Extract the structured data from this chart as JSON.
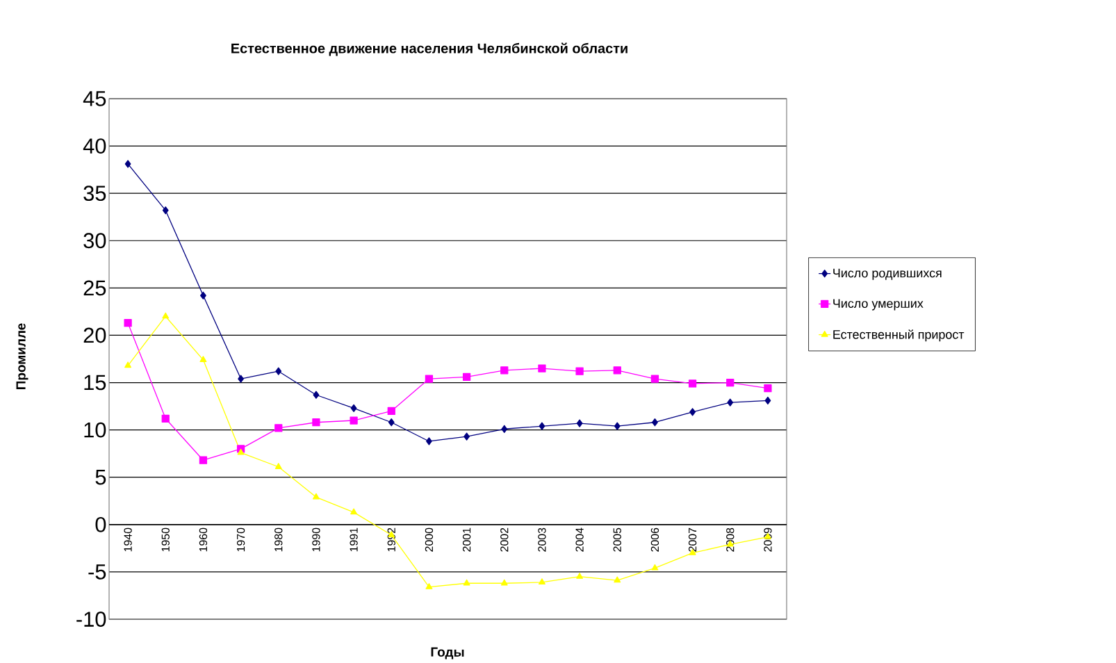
{
  "chart_data": {
    "type": "line",
    "title": "Естественное движение населения Челябинской области",
    "xlabel": "Годы",
    "ylabel": "Промилле",
    "categories": [
      "1940",
      "1950",
      "1960",
      "1970",
      "1980",
      "1990",
      "1991",
      "1992",
      "2000",
      "2001",
      "2002",
      "2003",
      "2004",
      "2005",
      "2006",
      "2007",
      "2008",
      "2009"
    ],
    "series": [
      {
        "name": "Число  родившихся",
        "color": "#000080",
        "marker": "diamond",
        "values": [
          38.1,
          33.2,
          24.2,
          15.4,
          16.2,
          13.7,
          12.3,
          10.8,
          8.8,
          9.3,
          10.1,
          10.4,
          10.7,
          10.4,
          10.8,
          11.9,
          12.9,
          13.1
        ]
      },
      {
        "name": "Число  умерших",
        "color": "#ff00ff",
        "marker": "square",
        "values": [
          21.3,
          11.2,
          6.8,
          8.0,
          10.2,
          10.8,
          11.0,
          12.0,
          15.4,
          15.6,
          16.3,
          16.5,
          16.2,
          16.3,
          15.4,
          14.9,
          15.0,
          14.4
        ]
      },
      {
        "name": "Естественный прирост",
        "color": "#ffff00",
        "marker": "triangle",
        "values": [
          16.8,
          22.0,
          17.4,
          7.6,
          6.1,
          2.9,
          1.3,
          -1.1,
          -6.6,
          -6.2,
          -6.2,
          -6.1,
          -5.5,
          -5.9,
          -4.6,
          -3.0,
          -2.1,
          -1.3
        ]
      }
    ],
    "ylim": [
      -10,
      45
    ],
    "yticks": [
      -10,
      -5,
      0,
      5,
      10,
      15,
      20,
      25,
      30,
      35,
      40,
      45
    ],
    "grid": true,
    "legend": "right"
  }
}
